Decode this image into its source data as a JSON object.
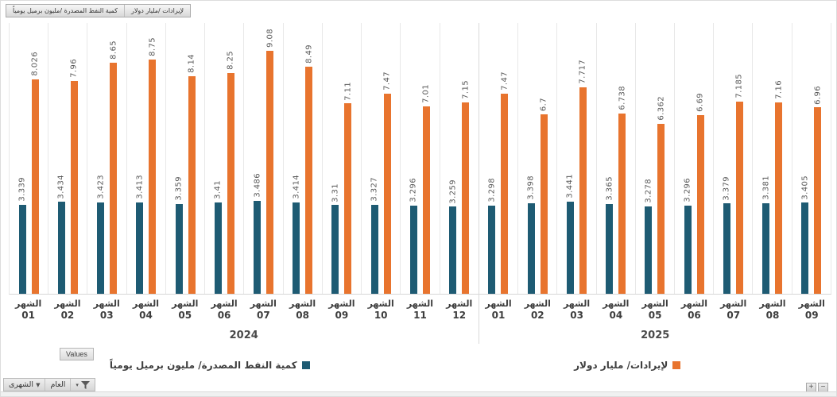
{
  "tabs": [
    {
      "label": "لإيرادات /مليار دولار"
    },
    {
      "label": "كمية النفط المصدرة /مليون برميل يومياً"
    }
  ],
  "toolbar": {
    "values_label": "Values",
    "monthly_label": "الشهرى",
    "year_label": "العام",
    "zoom_in": "+",
    "zoom_out": "−"
  },
  "colors": {
    "quantity_series": "#1E5B73",
    "revenue_series": "#E8742E",
    "gridline": "#e8e8e8",
    "axis_text": "#3d3d3d",
    "value_label": "#595959"
  },
  "chart_data": {
    "type": "bar",
    "title": "",
    "month_label": "الشهر",
    "ylim": [
      0,
      10.12
    ],
    "grid": "vertical-only",
    "legend_position": "bottom",
    "value_label_rotation": 90,
    "groups": [
      {
        "year": "2024",
        "months": [
          "01",
          "02",
          "03",
          "04",
          "05",
          "06",
          "07",
          "08",
          "09",
          "10",
          "11",
          "12"
        ]
      },
      {
        "year": "2025",
        "months": [
          "01",
          "02",
          "03",
          "04",
          "05",
          "06",
          "07",
          "08",
          "09"
        ]
      }
    ],
    "series": [
      {
        "id": "quantity",
        "name": "كمية النفط المصدرة/ مليون برميل يومياً",
        "color": "#1E5B73",
        "values": [
          "3.339",
          "3.434",
          "3.423",
          "3.413",
          "3.359",
          "3.41",
          "3.486",
          "3.414",
          "3.31",
          "3.327",
          "3.296",
          "3.259",
          "3.298",
          "3.398",
          "3.441",
          "3.365",
          "3.278",
          "3.296",
          "3.379",
          "3.381",
          "3.405"
        ]
      },
      {
        "id": "revenues",
        "name": "لإيرادات/ مليار دولار",
        "color": "#E8742E",
        "values": [
          "8.026",
          "7.96",
          "8.65",
          "8.75",
          "8.14",
          "8.25",
          "9.08",
          "8.49",
          "7.11",
          "7.47",
          "7.01",
          "7.15",
          "7.47",
          "6.7",
          "7.717",
          "6.738",
          "6.362",
          "6.69",
          "7.185",
          "7.16",
          "6.96"
        ]
      }
    ]
  }
}
